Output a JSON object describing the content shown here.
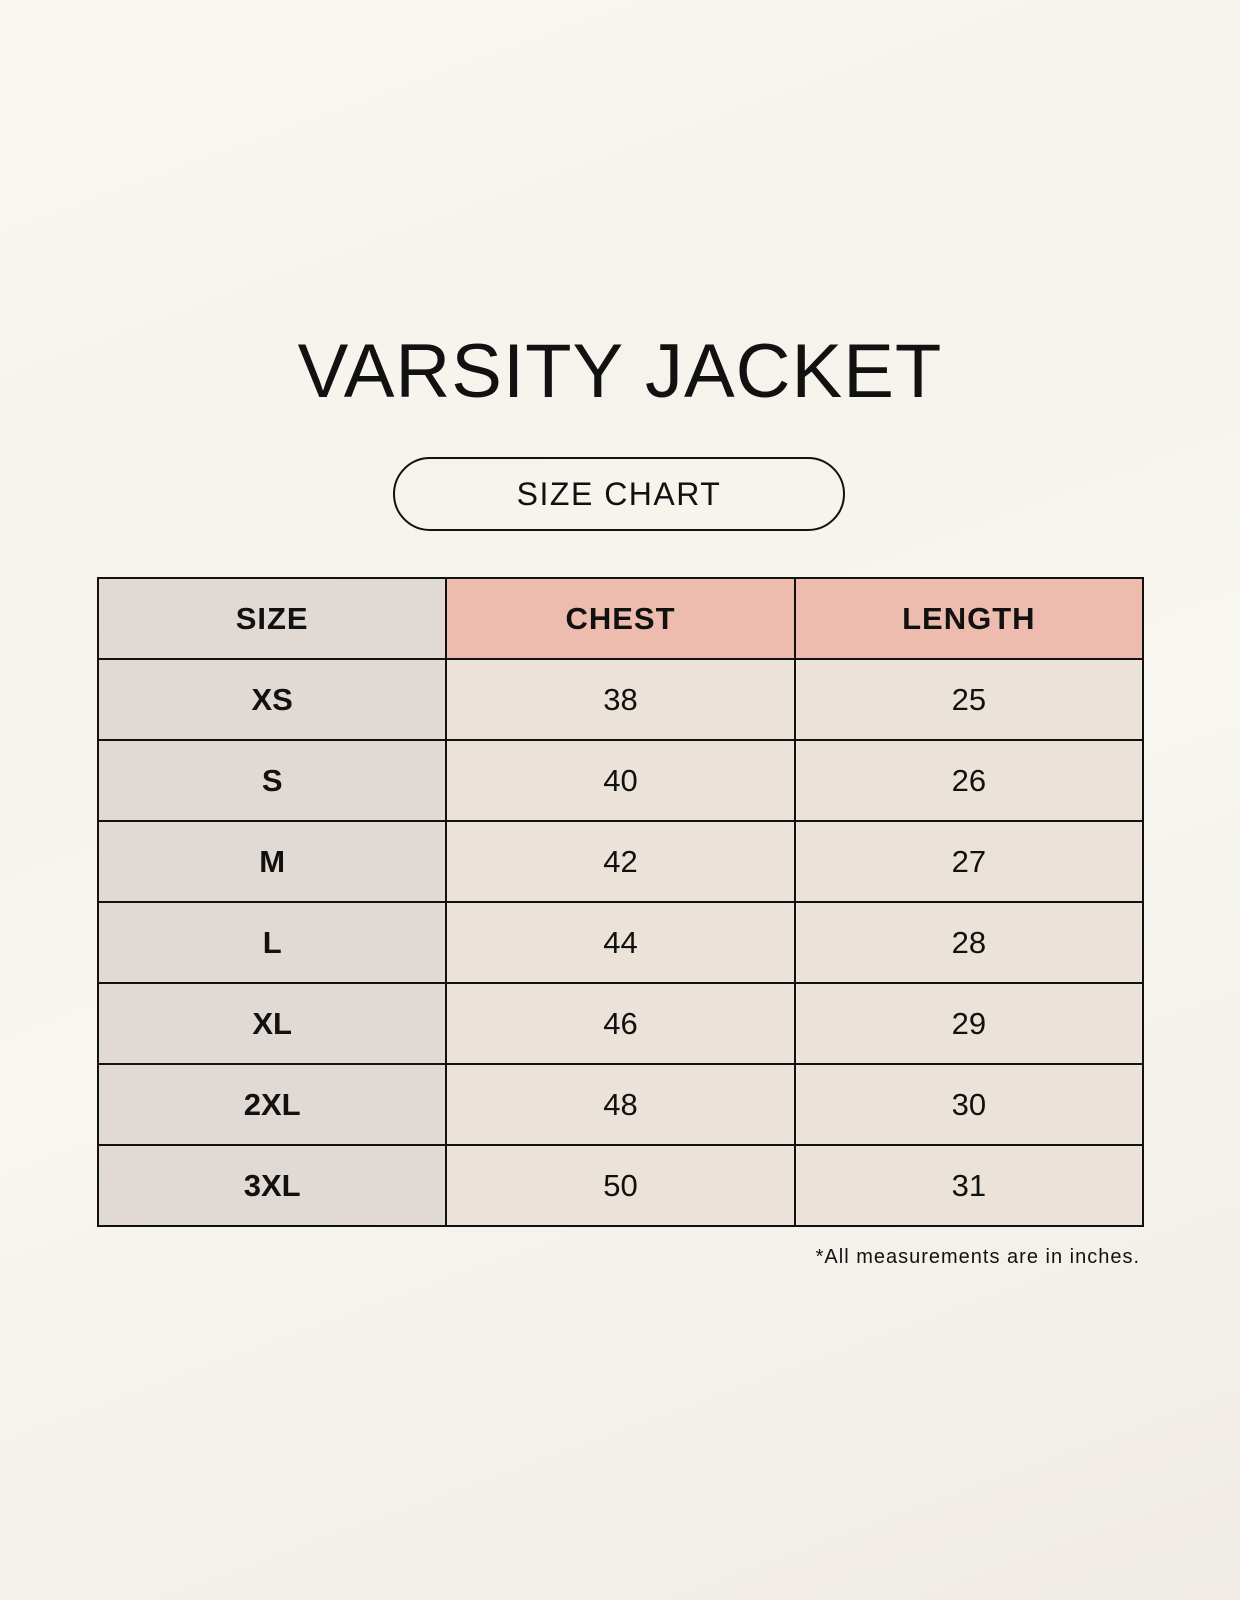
{
  "title": "VARSITY JACKET",
  "subtitle": "SIZE CHART",
  "table": {
    "headers": [
      "SIZE",
      "CHEST",
      "LENGTH"
    ],
    "rows": [
      [
        "XS",
        "38",
        "25"
      ],
      [
        "S",
        "40",
        "26"
      ],
      [
        "M",
        "42",
        "27"
      ],
      [
        "L",
        "44",
        "28"
      ],
      [
        "XL",
        "46",
        "29"
      ],
      [
        "2XL",
        "48",
        "30"
      ],
      [
        "3XL",
        "50",
        "31"
      ]
    ]
  },
  "footnote": "*All measurements are in inches.",
  "colors": {
    "size_column": "#e0d9d4",
    "header_accent": "#eebcae",
    "value_cells": "#ebe3da"
  }
}
